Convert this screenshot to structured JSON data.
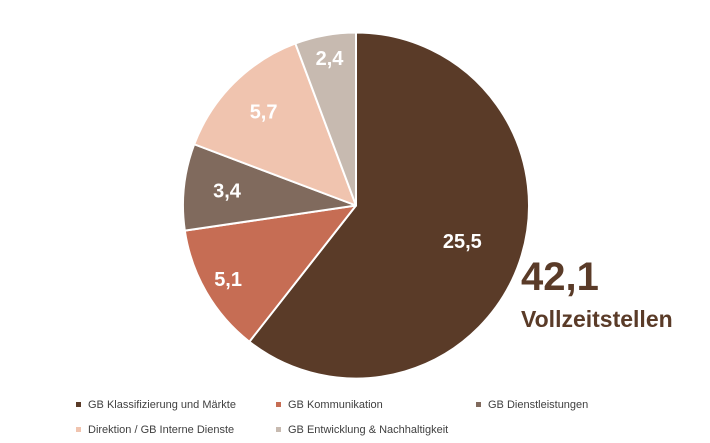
{
  "chart_data": {
    "type": "pie",
    "title": "",
    "categories": [
      "GB Klassifizierung und Märkte",
      "GB Kommunikation",
      "GB Dienstleistungen",
      "Direktion / GB Interne Dienste",
      "GB Entwicklung & Nachhaltigkeit"
    ],
    "values": [
      25.5,
      5.1,
      3.4,
      5.7,
      2.4
    ],
    "value_labels": [
      "25,5",
      "5,1",
      "3,4",
      "5,7",
      "2,4"
    ],
    "total": 42.1,
    "colors": [
      "#5A3B28",
      "#C66D54",
      "#806A5D",
      "#F0C4AF",
      "#C7BAB0"
    ],
    "slice_border_color": "#FFFFFF",
    "slice_label_color": "#FFFFFF",
    "start_angle_deg": 0,
    "direction": "clockwise",
    "legend_position": "bottom",
    "annotation": {
      "total_label": "42,1",
      "unit_label": "Vollzeitstellen",
      "color": "#5A3B28"
    }
  }
}
